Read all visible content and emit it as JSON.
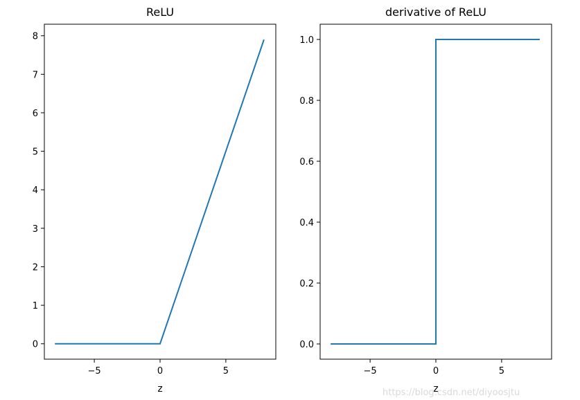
{
  "chart_data": [
    {
      "type": "line",
      "title": "ReLU",
      "xlabel": "z",
      "ylabel": "",
      "xlim": [
        -8.8,
        8.8
      ],
      "ylim": [
        -0.4,
        8.3
      ],
      "xticks": [
        -5,
        0,
        5
      ],
      "xtick_labels": [
        "−5",
        "0",
        "5"
      ],
      "yticks": [
        0,
        1,
        2,
        3,
        4,
        5,
        6,
        7,
        8
      ],
      "ytick_labels": [
        "0",
        "1",
        "2",
        "3",
        "4",
        "5",
        "6",
        "7",
        "8"
      ],
      "grid": false,
      "series": [
        {
          "x": [
            -8,
            0,
            7.9
          ],
          "y": [
            0,
            0,
            7.9
          ]
        }
      ]
    },
    {
      "type": "line",
      "title": "derivative of ReLU",
      "xlabel": "z",
      "ylabel": "",
      "xlim": [
        -8.8,
        8.8
      ],
      "ylim": [
        -0.05,
        1.05
      ],
      "xticks": [
        -5,
        0,
        5
      ],
      "xtick_labels": [
        "−5",
        "0",
        "5"
      ],
      "yticks": [
        0.0,
        0.2,
        0.4,
        0.6,
        0.8,
        1.0
      ],
      "ytick_labels": [
        "0.0",
        "0.2",
        "0.4",
        "0.6",
        "0.8",
        "1.0"
      ],
      "grid": false,
      "series": [
        {
          "x": [
            -8,
            0,
            0,
            7.9
          ],
          "y": [
            0,
            0,
            1,
            1
          ]
        }
      ]
    }
  ],
  "colors": {
    "line": "#1f77b4",
    "axes": "#000000",
    "watermark": "#d9d9d9"
  },
  "watermark": "https://blog.csdn.net/diyoosjtu"
}
